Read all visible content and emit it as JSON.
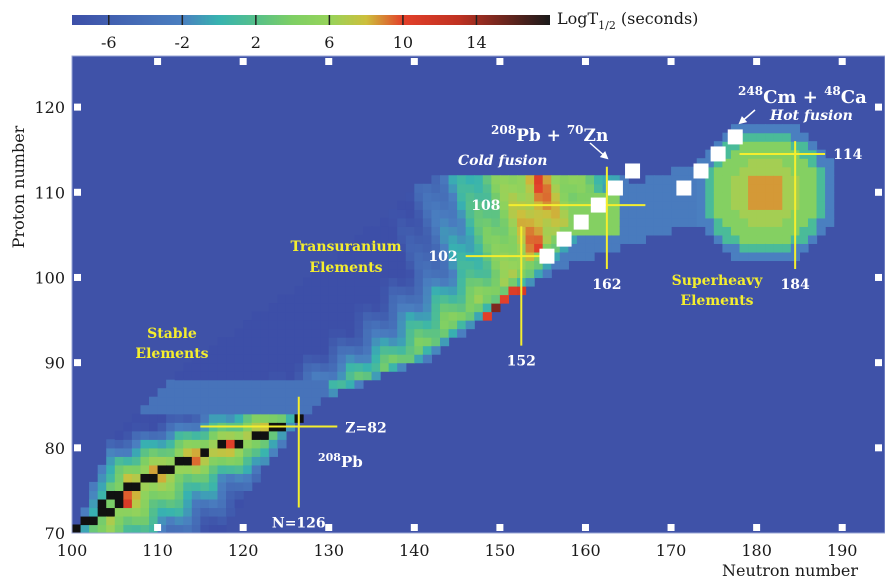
{
  "chart_data": {
    "type": "heatmap",
    "title": "",
    "xlabel": "Neutron number",
    "ylabel": "Proton number",
    "xlim": [
      100,
      195
    ],
    "ylim": [
      70,
      126
    ],
    "x_ticks": [
      100,
      110,
      120,
      130,
      140,
      150,
      160,
      170,
      180,
      190
    ],
    "y_ticks": [
      70,
      80,
      90,
      100,
      110,
      120
    ],
    "colorbar": {
      "label": "LogT",
      "label_sub": "1/2",
      "label_unit": "(seconds)",
      "range": [
        -8,
        18
      ],
      "ticks": [
        -6,
        -2,
        2,
        6,
        10,
        14
      ],
      "stops": [
        {
          "v": -8,
          "c": "#3d4fa8"
        },
        {
          "v": -2,
          "c": "#4a7fc0"
        },
        {
          "v": 0,
          "c": "#37b3b0"
        },
        {
          "v": 2,
          "c": "#56c08a"
        },
        {
          "v": 4,
          "c": "#7ecf64"
        },
        {
          "v": 6,
          "c": "#96d35a"
        },
        {
          "v": 8,
          "c": "#cdbf3c"
        },
        {
          "v": 10,
          "c": "#e3402a"
        },
        {
          "v": 13,
          "c": "#c03222"
        },
        {
          "v": 18,
          "c": "#1a1a1a"
        }
      ]
    },
    "background_color": "#3f52a8",
    "stable_color": "#111111",
    "cold_fusion_squares": [
      [
        155,
        102
      ],
      [
        157,
        104
      ],
      [
        159,
        106
      ],
      [
        161,
        108
      ],
      [
        163,
        110
      ],
      [
        165,
        112
      ]
    ],
    "hot_fusion_squares": [
      [
        171,
        110
      ],
      [
        173,
        112
      ],
      [
        175,
        114
      ],
      [
        177,
        116
      ]
    ],
    "magic_lines": [
      {
        "label": "Z=82",
        "axis": "h",
        "value": 82,
        "from": 115,
        "to": 131
      },
      {
        "label": "N=126",
        "axis": "v",
        "value": 126,
        "from": 73,
        "to": 86
      },
      {
        "label": "102",
        "axis": "h",
        "value": 102,
        "from": 146,
        "to": 156
      },
      {
        "label": "152",
        "axis": "v",
        "value": 152,
        "from": 92,
        "to": 106
      },
      {
        "label": "108",
        "axis": "h",
        "value": 108,
        "from": 151,
        "to": 167
      },
      {
        "label": "162",
        "axis": "v",
        "value": 162,
        "from": 101,
        "to": 113
      },
      {
        "label": "114",
        "axis": "h",
        "value": 114,
        "from": 178,
        "to": 188
      },
      {
        "label": "184",
        "axis": "v",
        "value": 184,
        "from": 101,
        "to": 116
      }
    ],
    "annotations": {
      "stable": [
        "Stable",
        "Elements"
      ],
      "transuranium": [
        "Transuranium",
        "Elements"
      ],
      "superheavy": [
        "Superheavy",
        "Elements"
      ],
      "pb208": {
        "sup": "208",
        "text": "Pb"
      },
      "cold_reaction": {
        "sup1": "208",
        "t1": "Pb + ",
        "sup2": "70",
        "t2": "Zn"
      },
      "cold_label": "Cold fusion",
      "hot_reaction": {
        "sup1": "248",
        "t1": "Cm + ",
        "sup2": "48",
        "t2": "Ca"
      },
      "hot_label": "Hot fusion"
    }
  }
}
